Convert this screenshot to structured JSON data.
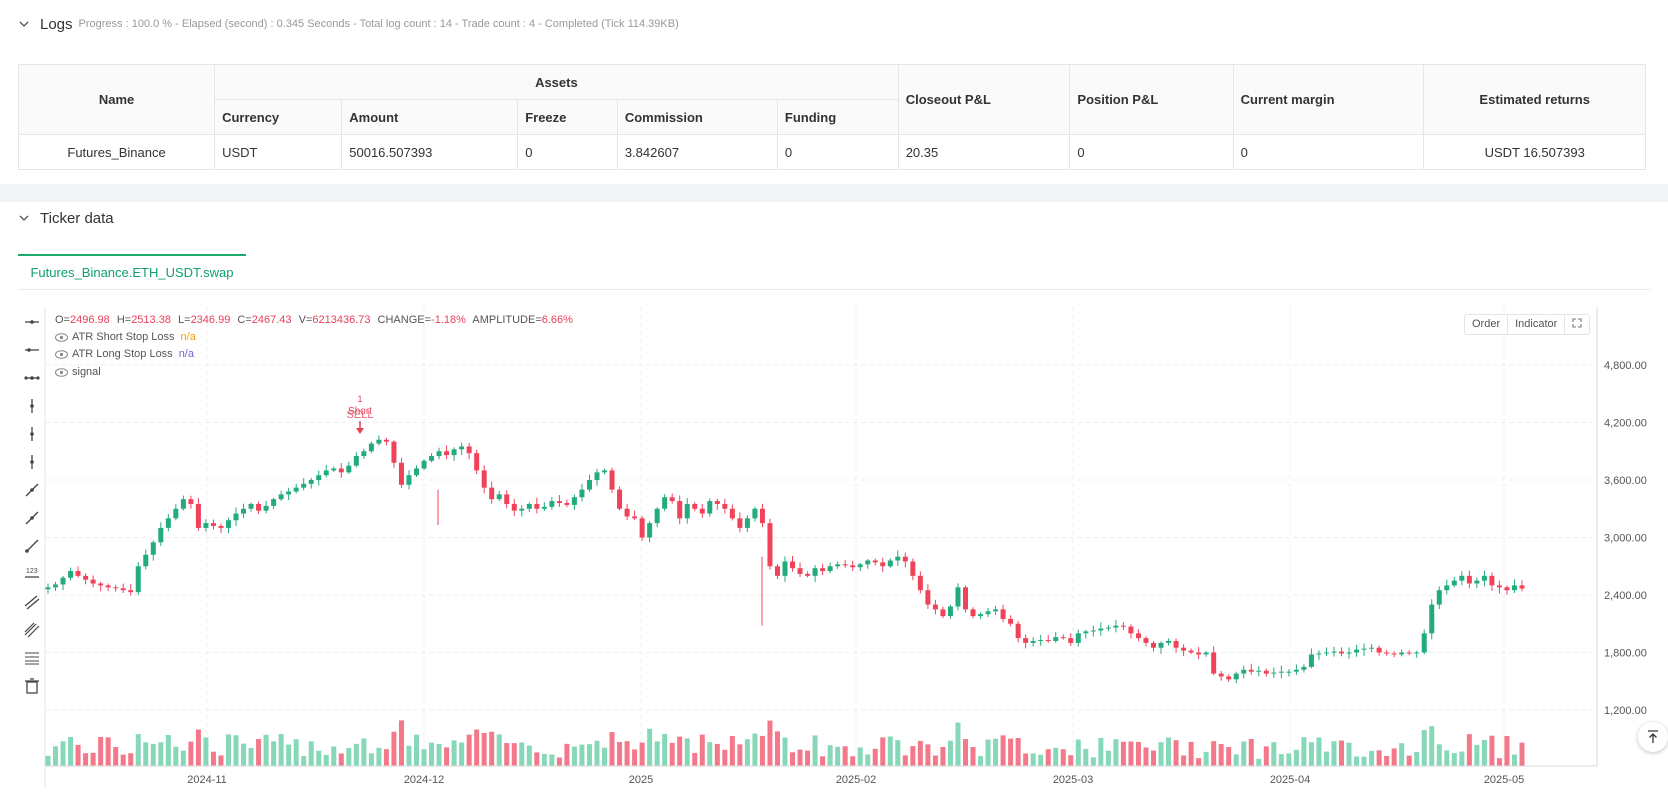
{
  "logs": {
    "title": "Logs",
    "progress": "Progress : 100.0 % - Elapsed (second) : 0.345  Seconds - Total log count : 14 - Trade count : 4 - Completed (Tick 114.39KB)"
  },
  "assets_table": {
    "headers": {
      "name": "Name",
      "assets": "Assets",
      "currency": "Currency",
      "amount": "Amount",
      "freeze": "Freeze",
      "commission": "Commission",
      "funding": "Funding",
      "closeout_pnl": "Closeout P&L",
      "position_pnl": "Position P&L",
      "current_margin": "Current margin",
      "estimated_returns": "Estimated returns"
    },
    "row": {
      "name": "Futures_Binance",
      "currency": "USDT",
      "amount": "50016.507393",
      "freeze": "0",
      "commission": "3.842607",
      "funding": "0",
      "closeout_pnl": "20.35",
      "position_pnl": "0",
      "current_margin": "0",
      "estimated_returns": "USDT 16.507393"
    }
  },
  "ticker": {
    "title": "Ticker data",
    "tab": "Futures_Binance.ETH_USDT.swap",
    "ohlc": {
      "o_label": "O=",
      "o": "2496.98",
      "h_label": "H=",
      "h": "2513.38",
      "l_label": "L=",
      "l": "2346.99",
      "c_label": "C=",
      "c": "2467.43",
      "v_label": "V=",
      "v": "6213436.73",
      "change_label": "CHANGE=",
      "change": "-1.18%",
      "amp_label": "AMPLITUDE=",
      "amp": "6.66%"
    },
    "legend": [
      {
        "name": "ATR Short Stop Loss",
        "value": "n/a",
        "color": "#f59e0b"
      },
      {
        "name": "ATR Long Stop Loss",
        "value": "n/a",
        "color": "#7c5cd6"
      },
      {
        "name": "signal",
        "value": "",
        "color": "#555555"
      }
    ],
    "buttons": {
      "order": "Order",
      "indicator": "Indicator"
    },
    "tools": [
      "cursor-line-icon",
      "horizontal-ray-icon",
      "horizontal-line-icon",
      "vertical-line-icon",
      "vertical-ray-icon",
      "vertical-segment-icon",
      "trend-line-icon",
      "trend-ray-icon",
      "extended-line-icon",
      "price-label-icon",
      "parallel-channel-icon",
      "pitchfork-icon",
      "fib-retracement-icon",
      "trash-icon"
    ]
  },
  "chart_data": {
    "type": "candlestick",
    "y_ticks": [
      1200,
      1800,
      2400,
      3000,
      3600,
      4200,
      4800
    ],
    "y_tick_labels": [
      "1,200.00",
      "1,800.00",
      "2,400.00",
      "3,000.00",
      "3,600.00",
      "4,200.00",
      "4,800.00"
    ],
    "ylim": [
      1000,
      5130
    ],
    "x_ticks": [
      "2024-11",
      "2024-12",
      "2025",
      "2025-02",
      "2025-03",
      "2025-04",
      "2025-05"
    ],
    "up_color": "#22ab7c",
    "down_color": "#f0435a",
    "annotation": {
      "label_top": "1",
      "label": "Short",
      "label2": "SELL",
      "price": 4070
    },
    "closes_path": [
      2480,
      2510,
      2580,
      2650,
      2600,
      2560,
      2520,
      2500,
      2480,
      2470,
      2450,
      2430,
      2700,
      2820,
      2950,
      3100,
      3200,
      3300,
      3400,
      3350,
      3100,
      3150,
      3120,
      3100,
      3180,
      3250,
      3300,
      3350,
      3280,
      3330,
      3400,
      3450,
      3480,
      3520,
      3560,
      3600,
      3650,
      3700,
      3720,
      3680,
      3750,
      3850,
      3900,
      3980,
      4020,
      4000,
      3780,
      3550,
      3650,
      3720,
      3800,
      3850,
      3900,
      3860,
      3920,
      3950,
      3880,
      3700,
      3520,
      3400,
      3450,
      3350,
      3280,
      3300,
      3350,
      3300,
      3320,
      3380,
      3360,
      3340,
      3420,
      3500,
      3600,
      3680,
      3700,
      3500,
      3300,
      3220,
      3200,
      3000,
      3150,
      3300,
      3420,
      3380,
      3200,
      3350,
      3300,
      3250,
      3380,
      3350,
      3300,
      3200,
      3100,
      3200,
      3300,
      3150,
      2700,
      2600,
      2750,
      2680,
      2620,
      2600,
      2680,
      2650,
      2700,
      2720,
      2710,
      2690,
      2720,
      2760,
      2740,
      2700,
      2760,
      2800,
      2750,
      2600,
      2450,
      2300,
      2250,
      2180,
      2280,
      2480,
      2250,
      2180,
      2200,
      2230,
      2250,
      2150,
      2100,
      1950,
      1900,
      1920,
      1930,
      1920,
      1960,
      1950,
      1900,
      2000,
      2020,
      2030,
      2050,
      2060,
      2080,
      2070,
      2000,
      1950,
      1900,
      1850,
      1900,
      1920,
      1850,
      1820,
      1800,
      1780,
      1800,
      1580,
      1550,
      1520,
      1580,
      1620,
      1600,
      1610,
      1580,
      1590,
      1600,
      1600,
      1620,
      1650,
      1780,
      1790,
      1800,
      1810,
      1790,
      1800,
      1830,
      1840,
      1850,
      1800,
      1790,
      1780,
      1800,
      1790,
      1800,
      2000,
      2300,
      2450,
      2500,
      2550,
      2600,
      2520,
      2550,
      2600,
      2500,
      2480,
      2450,
      2500,
      2467
    ]
  }
}
